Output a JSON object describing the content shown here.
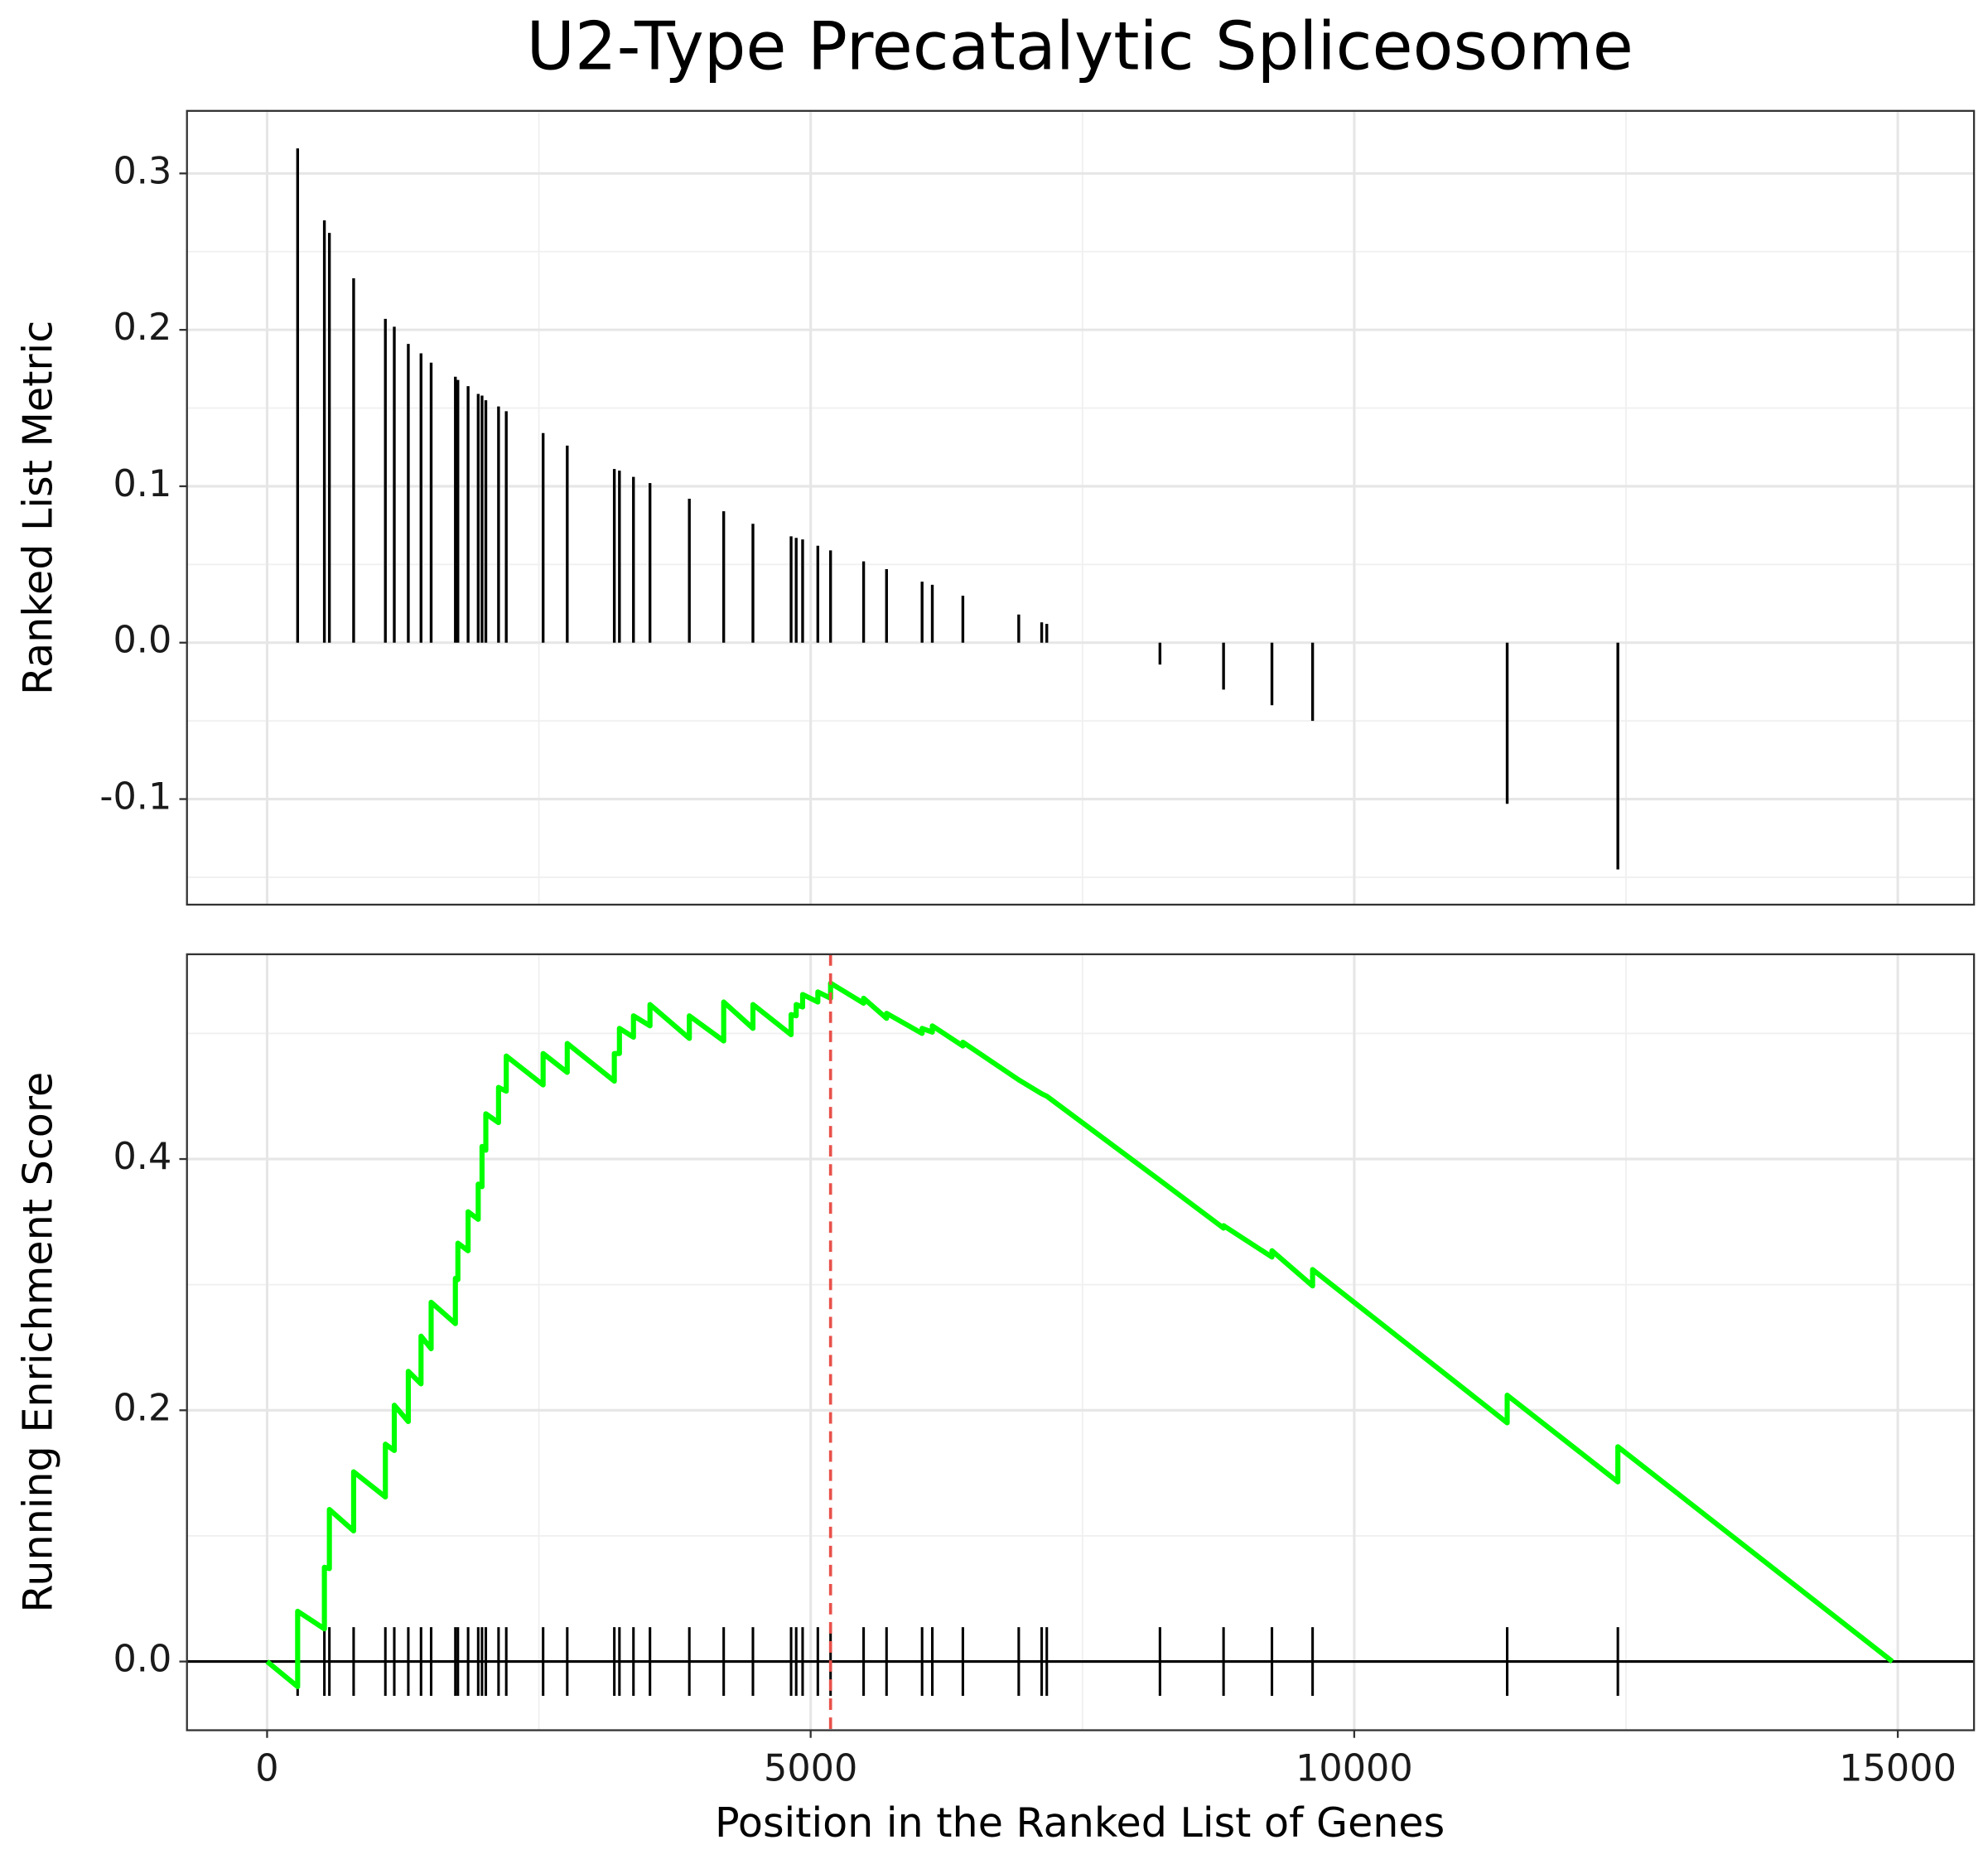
{
  "chart_data": [
    {
      "type": "bar",
      "title": "U2-Type Precatalytic Spliceosome",
      "y_label": "Ranked List Metric",
      "x": [
        281,
        527,
        573,
        796,
        1088,
        1170,
        1299,
        1416,
        1509,
        1732,
        1755,
        1849,
        1942,
        1977,
        2012,
        2129,
        2200,
        2539,
        2761,
        3194,
        3241,
        3370,
        3522,
        3884,
        4200,
        4469,
        4820,
        4867,
        4926,
        5066,
        5183,
        5487,
        5698,
        6025,
        6119,
        6400,
        6914,
        7125,
        7172,
        8213,
        8798,
        9243,
        9617,
        11407,
        12425
      ],
      "values": [
        0.316,
        0.27,
        0.262,
        0.233,
        0.207,
        0.202,
        0.191,
        0.185,
        0.179,
        0.17,
        0.168,
        0.164,
        0.159,
        0.158,
        0.155,
        0.151,
        0.148,
        0.134,
        0.126,
        0.111,
        0.11,
        0.106,
        0.102,
        0.092,
        0.084,
        0.076,
        0.068,
        0.067,
        0.066,
        0.062,
        0.059,
        0.052,
        0.047,
        0.039,
        0.037,
        0.03,
        0.018,
        0.013,
        0.012,
        -0.014,
        -0.03,
        -0.04,
        -0.05,
        -0.103,
        -0.145
      ],
      "color": "#000000",
      "xlim": [
        -737,
        15701
      ],
      "xticks": [
        0,
        5000,
        10000,
        15000
      ],
      "ylim": [
        -0.1675,
        0.34
      ],
      "yticks": [
        -0.1,
        {
          "value": 0,
          "label": "0.0"
        },
        0.1,
        0.2,
        0.3
      ],
      "grid": true
    },
    {
      "type": "line",
      "y_label": "Running Enrichment Score",
      "x_label": "Position in the Ranked List of Genes",
      "x": [
        0,
        281,
        281,
        527,
        527,
        573,
        573,
        796,
        796,
        1088,
        1088,
        1170,
        1170,
        1299,
        1299,
        1416,
        1416,
        1509,
        1509,
        1732,
        1732,
        1755,
        1755,
        1849,
        1849,
        1942,
        1942,
        1977,
        1977,
        2012,
        2012,
        2129,
        2129,
        2200,
        2200,
        2539,
        2539,
        2761,
        2761,
        3194,
        3194,
        3241,
        3241,
        3370,
        3370,
        3522,
        3522,
        3884,
        3884,
        4200,
        4200,
        4469,
        4469,
        4820,
        4820,
        4867,
        4867,
        4926,
        4926,
        5066,
        5066,
        5183,
        5183,
        5487,
        5487,
        5698,
        5698,
        6025,
        6025,
        6119,
        6119,
        6400,
        6400,
        6914,
        7125,
        7172,
        8213,
        8798,
        8798,
        9243,
        9243,
        9617,
        9617,
        11407,
        11407,
        12425,
        12425,
        14950
      ],
      "values": [
        0,
        -0.02,
        0.04,
        0.026,
        0.075,
        0.074,
        0.121,
        0.104,
        0.151,
        0.131,
        0.173,
        0.168,
        0.204,
        0.191,
        0.231,
        0.221,
        0.259,
        0.249,
        0.286,
        0.269,
        0.305,
        0.304,
        0.333,
        0.327,
        0.358,
        0.352,
        0.38,
        0.378,
        0.41,
        0.407,
        0.436,
        0.429,
        0.457,
        0.454,
        0.482,
        0.459,
        0.484,
        0.469,
        0.492,
        0.462,
        0.484,
        0.484,
        0.504,
        0.497,
        0.514,
        0.506,
        0.523,
        0.496,
        0.514,
        0.494,
        0.525,
        0.504,
        0.523,
        0.499,
        0.515,
        0.514,
        0.523,
        0.521,
        0.531,
        0.525,
        0.533,
        0.528,
        0.54,
        0.524,
        0.528,
        0.512,
        0.516,
        0.5,
        0.504,
        0.501,
        0.506,
        0.49,
        0.493,
        0.463,
        0.452,
        0.45,
        0.383,
        0.345,
        0.347,
        0.322,
        0.327,
        0.299,
        0.312,
        0.19,
        0.212,
        0.143,
        0.171,
        0
      ],
      "color": "#00ff00",
      "vline": 5183,
      "vline_color": "#e8514a",
      "xlim": [
        -737,
        15701
      ],
      "xticks": [
        0,
        5000,
        10000,
        15000
      ],
      "ylim": [
        -0.0547,
        0.563
      ],
      "yticks": [
        {
          "value": 0,
          "label": "0.0"
        },
        0.2,
        0.4
      ],
      "grid": true
    }
  ]
}
